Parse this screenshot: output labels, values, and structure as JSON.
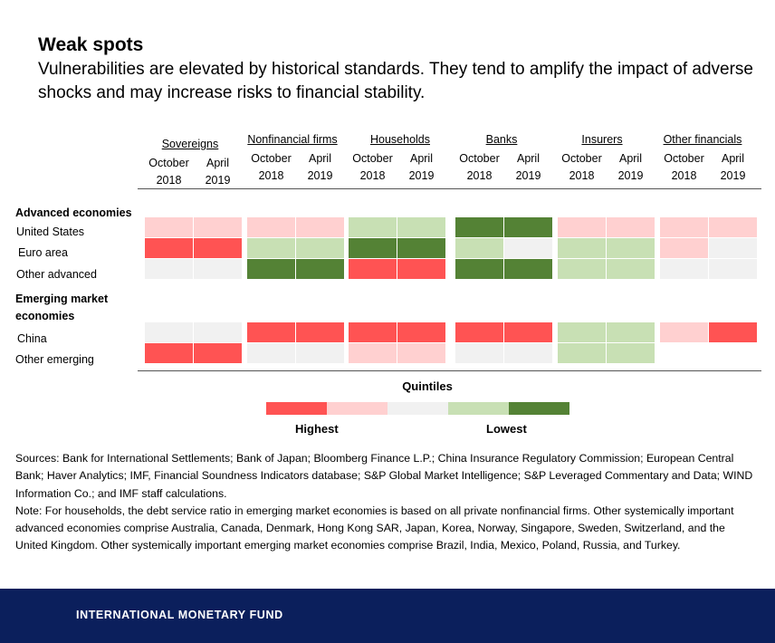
{
  "header": {
    "title": "Weak spots",
    "subtitle": "Vulnerabilities are elevated by historical standards. They tend to amplify the impact of adverse shocks and may increase risks to financial stability."
  },
  "chart_data": {
    "type": "heatmap",
    "title": "Weak spots",
    "column_groups": [
      "Sovereigns",
      "Nonfinancial firms",
      "Households",
      "Banks",
      "Insurers",
      "Other financials"
    ],
    "periods": [
      {
        "month": "October",
        "year": "2018"
      },
      {
        "month": "April",
        "year": "2019"
      }
    ],
    "row_sections": [
      {
        "label": "Advanced economies",
        "label_lines": [
          "Advanced economies"
        ],
        "rows": [
          {
            "label": "United States",
            "values": [
              [
                2,
                2
              ],
              [
                2,
                2
              ],
              [
                4,
                4
              ],
              [
                5,
                5
              ],
              [
                2,
                2
              ],
              [
                2,
                2
              ]
            ]
          },
          {
            "label": "Euro area",
            "values": [
              [
                1,
                1
              ],
              [
                4,
                4
              ],
              [
                5,
                5
              ],
              [
                4,
                3
              ],
              [
                4,
                4
              ],
              [
                2,
                3
              ]
            ]
          },
          {
            "label": "Other advanced",
            "values": [
              [
                3,
                3
              ],
              [
                5,
                5
              ],
              [
                1,
                1
              ],
              [
                5,
                5
              ],
              [
                4,
                4
              ],
              [
                3,
                3
              ]
            ]
          }
        ]
      },
      {
        "label": "Emerging market economies",
        "label_lines": [
          "Emerging market",
          "economies"
        ],
        "rows": [
          {
            "label": "China",
            "values": [
              [
                3,
                3
              ],
              [
                1,
                1
              ],
              [
                1,
                1
              ],
              [
                1,
                1
              ],
              [
                4,
                4
              ],
              [
                2,
                1
              ]
            ]
          },
          {
            "label": "Other emerging",
            "values": [
              [
                1,
                1
              ],
              [
                3,
                3
              ],
              [
                2,
                2
              ],
              [
                3,
                3
              ],
              [
                4,
                4
              ],
              [
                null,
                null
              ]
            ]
          }
        ]
      }
    ],
    "scale": {
      "title": "Quintiles",
      "quintiles": [
        1,
        2,
        3,
        4,
        5
      ],
      "colors": [
        "#ff5353",
        "#ffd0d0",
        "#f1f1f1",
        "#c8e0b4",
        "#548235"
      ],
      "low_label": "Highest",
      "high_label": "Lowest"
    }
  },
  "notes": {
    "sources": "Sources: Bank for International Settlements; Bank of Japan; Bloomberg Finance L.P.; China Insurance Regulatory Commission; European Central Bank; Haver Analytics; IMF, Financial Soundness Indicators database; S&P Global Market Intelligence; S&P Leveraged Commentary and Data; WIND Information Co.; and IMF staff calculations.",
    "note": "Note: For households, the debt service ratio in emerging market economies is based on all private nonfinancial firms. Other systemically important advanced economies comprise Australia, Canada, Denmark, Hong Kong SAR, Japan, Korea, Norway, Singapore, Sweden, Switzerland, and the United Kingdom. Other systemically important emerging market economies comprise Brazil, India, Mexico, Poland, Russia, and Turkey."
  },
  "footer": {
    "org": "INTERNATIONAL MONETARY FUND"
  }
}
